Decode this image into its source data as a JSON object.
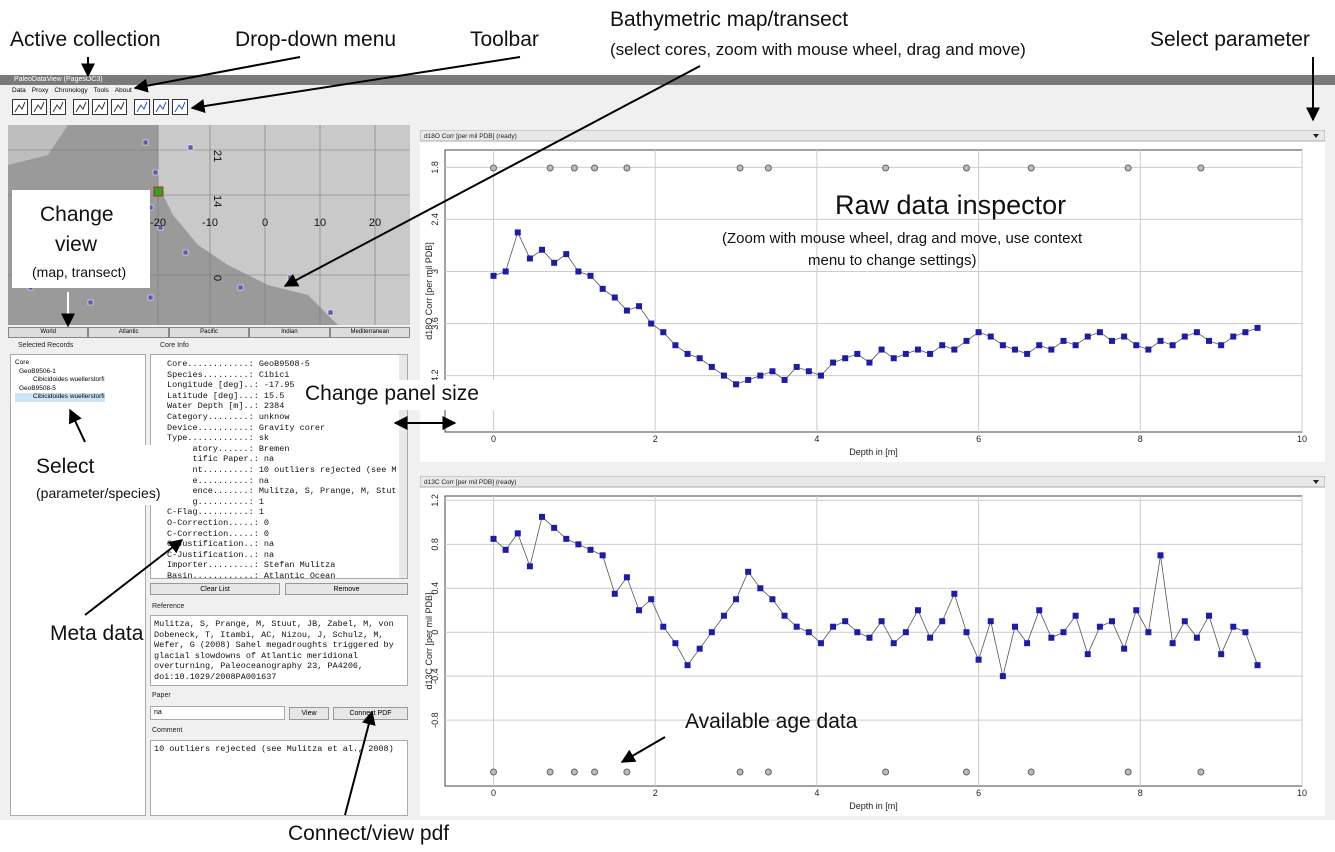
{
  "annotations": {
    "active_collection": "Active collection",
    "dropdown_menu": "Drop-down menu",
    "toolbar": "Toolbar",
    "bathymetric_title": "Bathymetric map/transect",
    "bathymetric_sub": "(select cores, zoom with mouse wheel, drag and move)",
    "select_parameter": "Select parameter",
    "change_view_1": "Change",
    "change_view_2": "view",
    "change_view_3": "(map, transect)",
    "raw_inspector": "Raw data inspector",
    "raw_inspector_sub1": "(Zoom with mouse wheel, drag and move, use context",
    "raw_inspector_sub2": "menu to change settings)",
    "change_panel_size": "Change panel size",
    "select_1": "Select",
    "select_2": "(parameter/species)",
    "meta_data": "Meta data",
    "available_age_data": "Available age data",
    "connect_pdf": "Connect/view pdf"
  },
  "window": {
    "title": "PaleoDataView (PagesOC3)",
    "menu": [
      "Data",
      "Proxy",
      "Chronology",
      "Tools",
      "About"
    ]
  },
  "map": {
    "lat_labels": [
      "21",
      "14",
      "0"
    ],
    "lon_labels": [
      "-20",
      "-10",
      "0",
      "10",
      "20"
    ],
    "tabs": [
      "World",
      "Atlantic",
      "Pacific",
      "Indian",
      "Mediterranean"
    ]
  },
  "records": {
    "title": "Selected Records",
    "header": "Core",
    "items": [
      "GeoB9506-1",
      "Cibicidoides wuellerstorfi",
      "GeoB9508-5",
      "Cibicidoides wuellerstorfi"
    ]
  },
  "core_info": {
    "title": "Core Info",
    "lines": [
      "Core............: GeoB9508-5",
      "Species.........: Cibici",
      "Longitude [deg]..: -17.95",
      "Latitude [deg]...: 15.5",
      "Water Depth [m]..: 2384",
      "Category........: unknow",
      "Device..........: Gravity corer",
      "Type............: sk",
      "Laboratory......: Bremen",
      "Scientific Paper.: na",
      "Comment.........: 10 outliers rejected (see M",
      "Source..........: na",
      "Reference.......: Mulitza, S, Prange, M, Stut",
      "O-Flag..........: 1",
      "C-Flag..........: 1",
      "O-Correction.....: 0",
      "C-Correction.....: 0",
      "O-Justification..: na",
      "C-Justification..: na",
      "Importer.........: Stefan Mulitza",
      "Basin............: Atlantic Ocean"
    ],
    "buttons": [
      "Clear List",
      "Remove"
    ]
  },
  "reference": {
    "title": "Reference",
    "text": "Mulitza, S, Prange, M, Stuut, JB, Zabel, M, von Dobeneck, T, Itambi, AC, Nizou, J, Schulz, M, Wefer, G (2008) Sahel megadroughts triggered by glacial slowdowns of Atlantic meridional overturning, Paleoceanography 23, PA4206, doi:10.1029/2008PA001637"
  },
  "paper": {
    "title": "Paper",
    "value": "na",
    "buttons": [
      "View",
      "Connect PDF"
    ]
  },
  "comment": {
    "title": "Comment",
    "text": "10 outliers rejected (see Mulitza et al., 2008)"
  },
  "chart_data": [
    {
      "type": "line",
      "title": "d18O Corr [per mil PDB] (ready)",
      "ylabel": "d18O Corr [per mil PDB]",
      "xlabel": "Depth in [m]",
      "y_inverted": true,
      "grid": true,
      "x": [
        0,
        0.15,
        0.3,
        0.45,
        0.6,
        0.75,
        0.9,
        1.05,
        1.2,
        1.35,
        1.5,
        1.65,
        1.8,
        1.95,
        2.1,
        2.25,
        2.4,
        2.55,
        2.7,
        2.85,
        3,
        3.15,
        3.3,
        3.45,
        3.6,
        3.75,
        3.9,
        4.05,
        4.2,
        4.35,
        4.5,
        4.65,
        4.8,
        4.95,
        5.1,
        5.25,
        5.4,
        5.55,
        5.7,
        5.85,
        6,
        6.15,
        6.3,
        6.45,
        6.6,
        6.75,
        6.9,
        7.05,
        7.2,
        7.35,
        7.5,
        7.65,
        7.8,
        7.95,
        8.1,
        8.25,
        8.4,
        8.55,
        8.7,
        8.85,
        9,
        9.15,
        9.3,
        9.45
      ],
      "series": [
        {
          "color": "#1c1ca8",
          "line_color": "#555555",
          "values": [
            3.05,
            3.0,
            2.55,
            2.85,
            2.75,
            2.9,
            2.8,
            3.0,
            3.05,
            3.2,
            3.3,
            3.45,
            3.4,
            3.6,
            3.7,
            3.85,
            3.95,
            4.0,
            4.1,
            4.2,
            4.3,
            4.25,
            4.2,
            4.15,
            4.25,
            4.1,
            4.15,
            4.2,
            4.05,
            4.0,
            3.95,
            4.05,
            3.9,
            4.0,
            3.95,
            3.9,
            3.95,
            3.85,
            3.9,
            3.8,
            3.7,
            3.75,
            3.85,
            3.9,
            3.95,
            3.85,
            3.9,
            3.8,
            3.85,
            3.75,
            3.7,
            3.8,
            3.75,
            3.85,
            3.9,
            3.8,
            3.85,
            3.75,
            3.7,
            3.8,
            3.85,
            3.75,
            3.7,
            3.65
          ]
        }
      ],
      "age_x": [
        0,
        0.7,
        1.0,
        1.25,
        1.65,
        3.05,
        3.4,
        4.85,
        5.85,
        6.65,
        7.85,
        8.75
      ],
      "xlim": [
        -0.6,
        10
      ],
      "xticks": [
        0,
        2,
        4,
        6,
        8,
        10
      ],
      "ylim": [
        1.6,
        4.85
      ],
      "yticks": [
        1.8,
        2.4,
        3,
        3.6,
        4.2
      ]
    },
    {
      "type": "line",
      "title": "d13C Corr [per mil PDB] (ready)",
      "ylabel": "d13C Corr [per mil PDB]",
      "xlabel": "Depth in [m]",
      "y_inverted": false,
      "grid": true,
      "x": [
        0,
        0.15,
        0.3,
        0.45,
        0.6,
        0.75,
        0.9,
        1.05,
        1.2,
        1.35,
        1.5,
        1.65,
        1.8,
        1.95,
        2.1,
        2.25,
        2.4,
        2.55,
        2.7,
        2.85,
        3,
        3.15,
        3.3,
        3.45,
        3.6,
        3.75,
        3.9,
        4.05,
        4.2,
        4.35,
        4.5,
        4.65,
        4.8,
        4.95,
        5.1,
        5.25,
        5.4,
        5.55,
        5.7,
        5.85,
        6,
        6.15,
        6.3,
        6.45,
        6.6,
        6.75,
        6.9,
        7.05,
        7.2,
        7.35,
        7.5,
        7.65,
        7.8,
        7.95,
        8.1,
        8.25,
        8.4,
        8.55,
        8.7,
        8.85,
        9,
        9.15,
        9.3,
        9.45
      ],
      "series": [
        {
          "color": "#1c1ca8",
          "line_color": "#555555",
          "values": [
            0.85,
            0.75,
            0.9,
            0.6,
            1.05,
            0.95,
            0.85,
            0.8,
            0.75,
            0.7,
            0.35,
            0.5,
            0.2,
            0.3,
            0.05,
            -0.1,
            -0.3,
            -0.15,
            0.0,
            0.15,
            0.3,
            0.55,
            0.4,
            0.3,
            0.15,
            0.05,
            0.0,
            -0.1,
            0.05,
            0.1,
            0.0,
            -0.05,
            0.1,
            -0.1,
            0.0,
            0.2,
            -0.05,
            0.1,
            0.35,
            0.0,
            -0.25,
            0.1,
            -0.4,
            0.05,
            -0.1,
            0.2,
            -0.05,
            0.0,
            0.15,
            -0.2,
            0.05,
            0.1,
            -0.15,
            0.2,
            0.0,
            0.7,
            -0.1,
            0.1,
            -0.05,
            0.15,
            -0.2,
            0.05,
            0.0,
            -0.3
          ]
        }
      ],
      "age_x": [
        0,
        0.7,
        1.0,
        1.25,
        1.65,
        3.05,
        3.4,
        4.85,
        5.85,
        6.65,
        7.85,
        8.75
      ],
      "xlim": [
        -0.6,
        10
      ],
      "xticks": [
        0,
        2,
        4,
        6,
        8,
        10
      ],
      "ylim": [
        -1.4,
        1.24
      ],
      "yticks": [
        -0.8,
        -0.4,
        0,
        0.4,
        0.8,
        1.2
      ]
    }
  ]
}
